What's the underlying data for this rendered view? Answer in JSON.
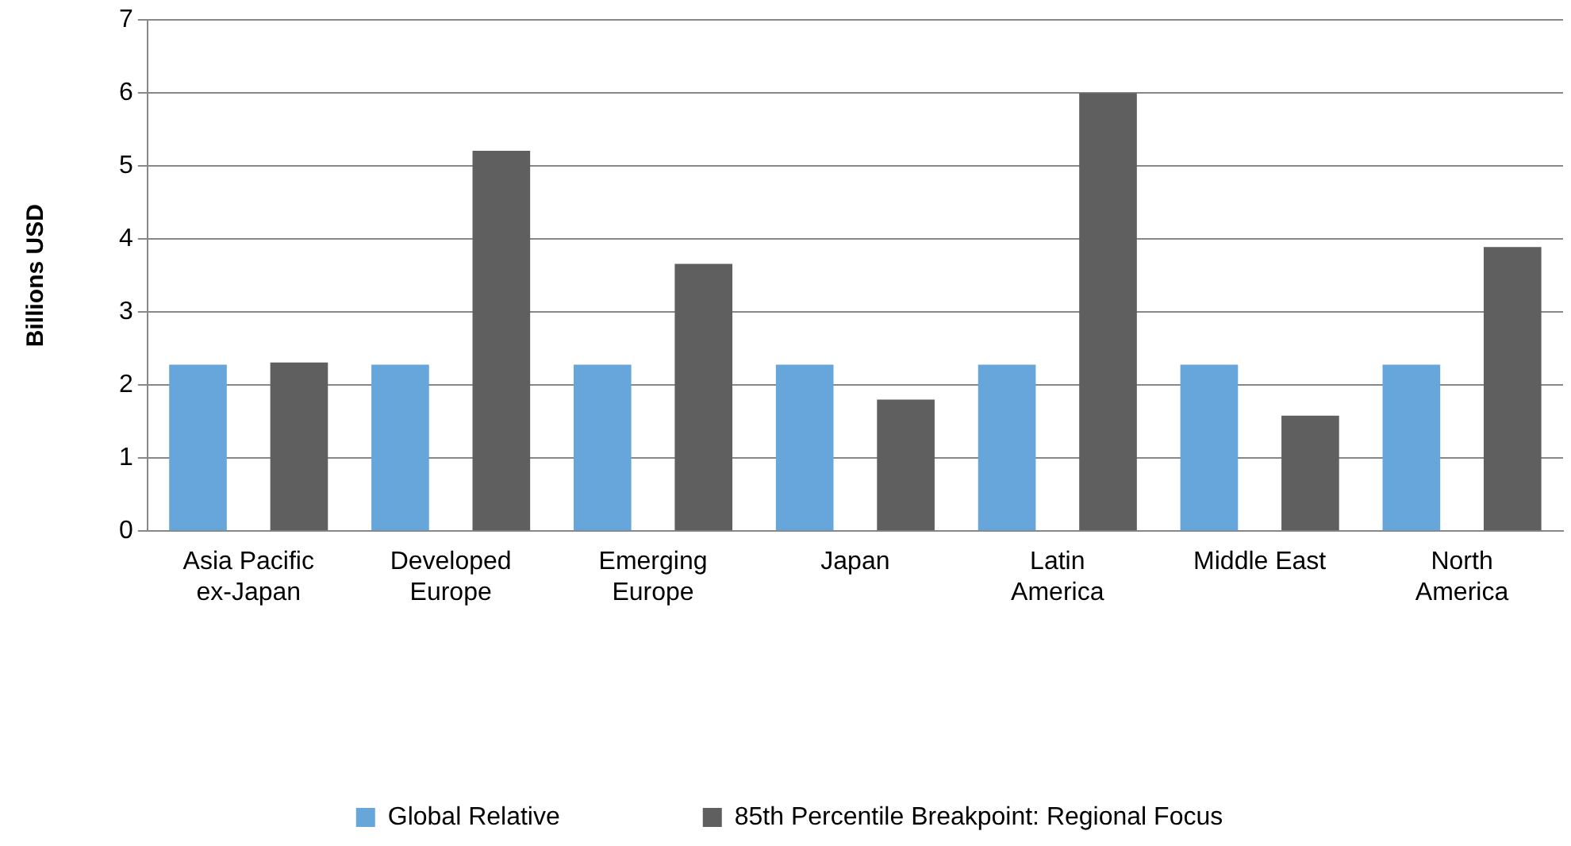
{
  "chart_data": {
    "type": "bar",
    "ylabel": "Billions USD",
    "categories": [
      "Asia Pacific ex-Japan",
      "Developed Europe",
      "Emerging Europe",
      "Japan",
      "Latin America",
      "Middle East",
      "North America"
    ],
    "series": [
      {
        "name": "Global Relative",
        "color": "#66a6da",
        "values": [
          2.28,
          2.28,
          2.28,
          2.28,
          2.28,
          2.28,
          2.28
        ]
      },
      {
        "name": "85th Percentile Breakpoint: Regional Focus",
        "color": "#5f5f5f",
        "values": [
          2.31,
          5.21,
          3.66,
          1.8,
          6.0,
          1.58,
          3.89
        ]
      }
    ],
    "ylim": [
      0,
      7
    ],
    "yticks": [
      0,
      1,
      2,
      3,
      4,
      5,
      6,
      7
    ],
    "grid": "y",
    "legend": "bottom"
  }
}
